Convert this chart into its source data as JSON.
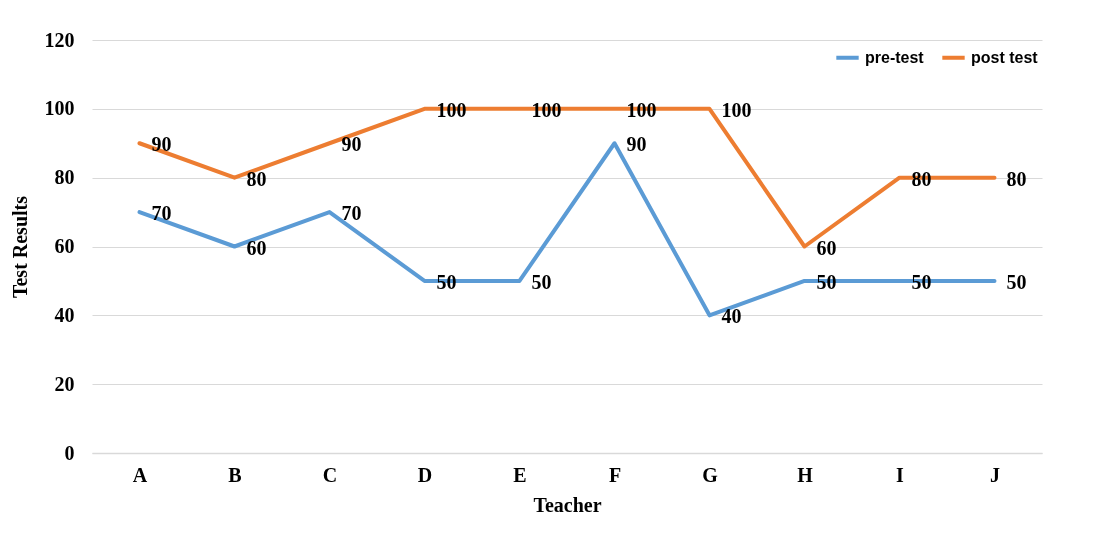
{
  "chart_data": {
    "type": "line",
    "xlabel": "Teacher",
    "ylabel": "Test Results",
    "categories": [
      "A",
      "B",
      "C",
      "D",
      "E",
      "F",
      "G",
      "H",
      "I",
      "J"
    ],
    "series": [
      {
        "name": "pre-test",
        "color": "#5b9bd5",
        "values": [
          70,
          60,
          70,
          50,
          50,
          90,
          40,
          50,
          50,
          50
        ]
      },
      {
        "name": "post test",
        "color": "#ed7d31",
        "values": [
          90,
          80,
          90,
          100,
          100,
          100,
          100,
          60,
          80,
          80
        ]
      }
    ],
    "ylim": [
      0,
      120
    ],
    "yticks": [
      0,
      20,
      40,
      60,
      80,
      100,
      120
    ],
    "grid": "y",
    "legend": "top right",
    "data_labels": true,
    "marker": "none",
    "line_style": "solid"
  }
}
